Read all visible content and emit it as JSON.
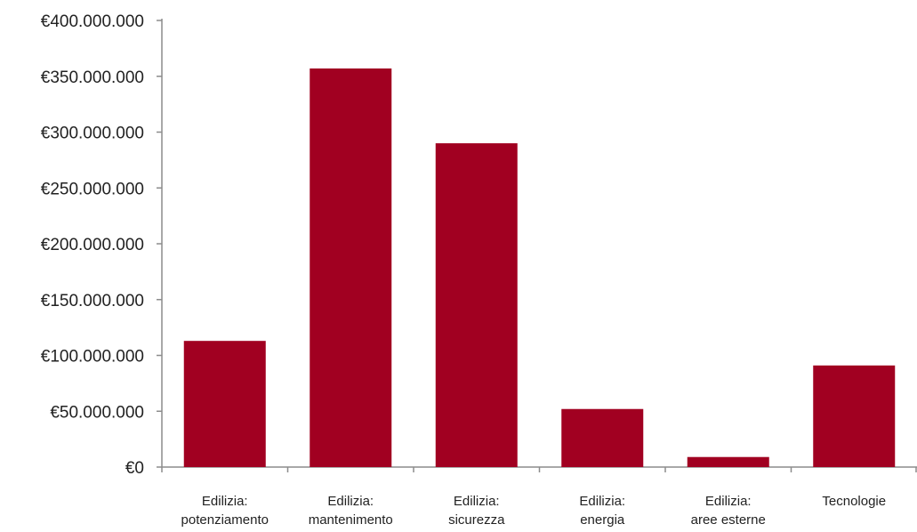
{
  "chart_data": {
    "type": "bar",
    "categories": [
      [
        "Edilizia:",
        "potenziamento"
      ],
      [
        "Edilizia:",
        "mantenimento"
      ],
      [
        "Edilizia:",
        "sicurezza"
      ],
      [
        "Edilizia:",
        "energia"
      ],
      [
        "Edilizia:",
        "aree esterne"
      ],
      [
        "Tecnologie"
      ]
    ],
    "values": [
      113000000,
      357000000,
      290000000,
      52000000,
      9000000,
      91000000
    ],
    "ylim": [
      0,
      400000000
    ],
    "yticks": [
      0,
      50000000,
      100000000,
      150000000,
      200000000,
      250000000,
      300000000,
      350000000,
      400000000
    ],
    "ytick_labels": [
      "€0",
      "€50.000.000",
      "€100.000.000",
      "€150.000.000",
      "€200.000.000",
      "€250.000.000",
      "€300.000.000",
      "€350.000.000",
      "€400.000.000"
    ],
    "bar_color": "#a10021",
    "axis_color": "#8c8c8c",
    "grid": false,
    "legend": "none"
  }
}
